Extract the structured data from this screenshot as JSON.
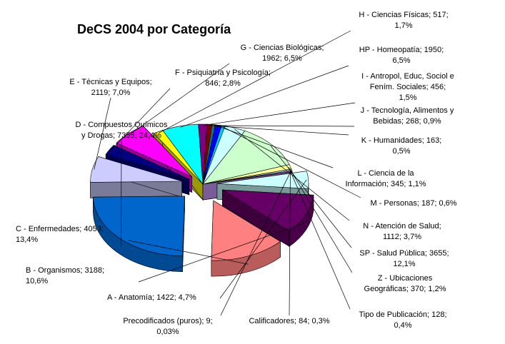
{
  "chart_data": {
    "type": "pie",
    "title": "DeCS 2004 por Categoría",
    "style": "3d-exploded",
    "legend": "none",
    "slices": [
      {
        "key": "A",
        "lines": [
          "A - Anatomía; 1422; 4,7%"
        ],
        "value": 1422,
        "percent": 4.7,
        "color": "#ccffff"
      },
      {
        "key": "B",
        "lines": [
          "B - Organismos; 3188;",
          "10,6%"
        ],
        "value": 3188,
        "percent": 10.6,
        "color": "#660066"
      },
      {
        "key": "C",
        "lines": [
          "C - Enfermedades; 4053;",
          "13,4%"
        ],
        "value": 4053,
        "percent": 13.4,
        "color": "#ff8080"
      },
      {
        "key": "D",
        "lines": [
          "D - Compuestos Químicos",
          "y Drogas; 7355; 24,4%"
        ],
        "value": 7355,
        "percent": 24.4,
        "color": "#0066cc"
      },
      {
        "key": "E",
        "lines": [
          "E - Técnicas y Equipos;",
          "2119; 7,0%"
        ],
        "value": 2119,
        "percent": 7.0,
        "color": "#ccccff"
      },
      {
        "key": "F",
        "lines": [
          "F - Psiquiatría y Psicología;",
          "846; 2,8%"
        ],
        "value": 846,
        "percent": 2.8,
        "color": "#000080"
      },
      {
        "key": "G",
        "lines": [
          "G - Ciencias Biológicas;",
          "1962; 6,5%"
        ],
        "value": 1962,
        "percent": 6.5,
        "color": "#ff00ff"
      },
      {
        "key": "H",
        "lines": [
          "H - Ciencias Físicas; 517;",
          "1,7%"
        ],
        "value": 517,
        "percent": 1.7,
        "color": "#ffff00"
      },
      {
        "key": "HP",
        "lines": [
          "HP - Homeopatía; 1950;",
          "6,5%"
        ],
        "value": 1950,
        "percent": 6.5,
        "color": "#00ffff"
      },
      {
        "key": "I",
        "lines": [
          "I - Antropol, Educ, Sociol e",
          "Fením. Sociales; 456;",
          "1,5%"
        ],
        "value": 456,
        "percent": 1.5,
        "color": "#800080"
      },
      {
        "key": "J",
        "lines": [
          "J - Tecnología, Alimentos y",
          "Bebidas; 268; 0,9%"
        ],
        "value": 268,
        "percent": 0.9,
        "color": "#800000"
      },
      {
        "key": "K",
        "lines": [
          "K - Humanidades; 163;",
          "0,5%"
        ],
        "value": 163,
        "percent": 0.5,
        "color": "#008080"
      },
      {
        "key": "L",
        "lines": [
          "L - Ciencia de la",
          "Información; 345; 1,1%"
        ],
        "value": 345,
        "percent": 1.1,
        "color": "#0000ff"
      },
      {
        "key": "M",
        "lines": [
          "M - Personas; 187; 0,6%"
        ],
        "value": 187,
        "percent": 0.6,
        "color": "#00ccff"
      },
      {
        "key": "N",
        "lines": [
          "N - Atención de Salud;",
          "1112; 3,7%"
        ],
        "value": 1112,
        "percent": 3.7,
        "color": "#ccffff"
      },
      {
        "key": "SP",
        "lines": [
          "SP - Salud Pública; 3655;",
          "12,1%"
        ],
        "value": 3655,
        "percent": 12.1,
        "color": "#ccffcc"
      },
      {
        "key": "Z",
        "lines": [
          "Z - Ubicaciones",
          "Geográficas; 370; 1,2%"
        ],
        "value": 370,
        "percent": 1.2,
        "color": "#ffff99"
      },
      {
        "key": "TP",
        "lines": [
          "Tipo de Publicación; 128;",
          "0,4%"
        ],
        "value": 128,
        "percent": 0.4,
        "color": "#99ccff"
      },
      {
        "key": "CAL",
        "lines": [
          "Calificadores; 84; 0,3%"
        ],
        "value": 84,
        "percent": 0.3,
        "color": "#ff99cc"
      },
      {
        "key": "PRE",
        "lines": [
          "Precodificados (puros); 9;",
          "0,03%"
        ],
        "value": 9,
        "percent": 0.03,
        "color": "#cc99ff"
      }
    ]
  }
}
